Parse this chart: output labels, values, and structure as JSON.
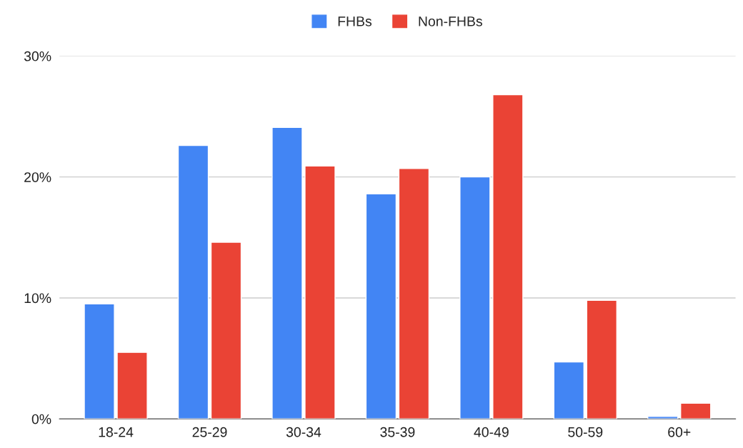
{
  "chart_data": {
    "type": "bar",
    "categories": [
      "18-24",
      "25-29",
      "30-34",
      "35-39",
      "40-49",
      "50-59",
      "60+"
    ],
    "series": [
      {
        "name": "FHBs",
        "color": "#4285f4",
        "values": [
          9.5,
          22.6,
          24.1,
          18.6,
          20.0,
          4.7,
          0.2
        ]
      },
      {
        "name": "Non-FHBs",
        "color": "#ea4335",
        "values": [
          5.5,
          14.6,
          20.9,
          20.7,
          26.8,
          9.8,
          1.3
        ]
      }
    ],
    "ylim": [
      0,
      30
    ],
    "yticks": [
      {
        "value": 0,
        "label": "0%"
      },
      {
        "value": 10,
        "label": "10%"
      },
      {
        "value": 20,
        "label": "20%"
      },
      {
        "value": 30,
        "label": "30%"
      }
    ],
    "grid": "y",
    "legend": "top"
  }
}
